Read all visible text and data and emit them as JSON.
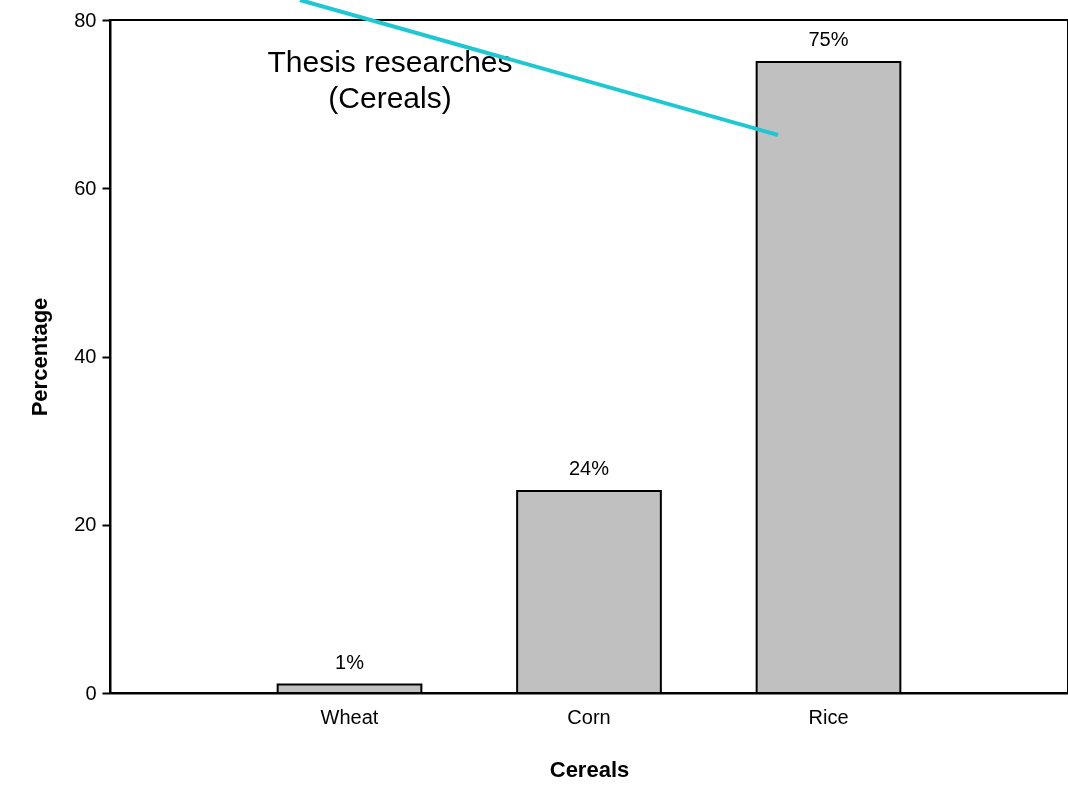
{
  "chart_data": {
    "type": "bar",
    "xlabel": "Cereals",
    "ylabel": "Percentage",
    "categories": [
      "Wheat",
      "Corn",
      "Rice"
    ],
    "values": [
      1,
      24,
      75
    ],
    "color": "#c0c0c0",
    "value_labels": [
      "1%",
      "24%",
      "75%"
    ],
    "ylim": [
      0,
      80
    ],
    "yticks": [
      0,
      20,
      40,
      60,
      80
    ],
    "grid": false,
    "annotations": [
      "Thesis researches\n(Cereals)"
    ]
  }
}
